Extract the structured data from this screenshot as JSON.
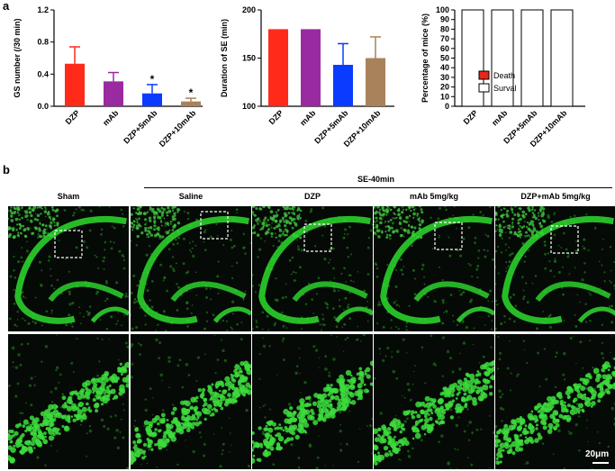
{
  "panel_a_label": "a",
  "panel_b_label": "b",
  "chart_data": [
    {
      "type": "bar",
      "categories": [
        "DZP",
        "mAb",
        "DZP+5mAb",
        "DZP+10mAb"
      ],
      "values": [
        0.53,
        0.31,
        0.16,
        0.06
      ],
      "errors": [
        0.21,
        0.11,
        0.11,
        0.04
      ],
      "colors": [
        "#ff2a1a",
        "#9a2aa0",
        "#0a3cff",
        "#a8825a"
      ],
      "ylabel": "GS number (/30 min)",
      "ylim": [
        0,
        1.2
      ],
      "yticks": [
        "0.0",
        "0.4",
        "0.8",
        "1.2"
      ],
      "annotations": [
        "",
        "",
        "*",
        "*"
      ]
    },
    {
      "type": "bar",
      "categories": [
        "DZP",
        "mAb",
        "DZP+5mAb",
        "DZP+10mAb"
      ],
      "values": [
        180,
        180,
        143,
        150
      ],
      "errors": [
        0,
        0,
        22,
        22
      ],
      "colors": [
        "#ff2a1a",
        "#9a2aa0",
        "#0a3cff",
        "#a8825a"
      ],
      "ylabel": "Duration of SE (min)",
      "ylim": [
        100,
        200
      ],
      "yticks": [
        "100",
        "150",
        "200"
      ]
    },
    {
      "type": "bar",
      "stacked": true,
      "categories": [
        "DZP",
        "mAb",
        "DZP+5mAb",
        "DZP+10mAb"
      ],
      "series": [
        {
          "name": "Death",
          "values": [
            0,
            0,
            0,
            0
          ],
          "color": "#e8261c"
        },
        {
          "name": "Surval",
          "values": [
            100,
            100,
            100,
            100
          ],
          "color": "#ffffff"
        }
      ],
      "ylabel": "Percentage of mice (%)",
      "ylim": [
        0,
        100
      ],
      "yticks": [
        "0",
        "10",
        "20",
        "30",
        "40",
        "50",
        "60",
        "70",
        "80",
        "90",
        "100"
      ],
      "legend": "center-left"
    }
  ],
  "panel_b": {
    "group_label": "SE-40min",
    "columns": [
      "Sham",
      "Saline",
      "DZP",
      "mAb 5mg/kg",
      "DZP+mAb 5mg/kg"
    ],
    "scale_bar": "20μm"
  }
}
